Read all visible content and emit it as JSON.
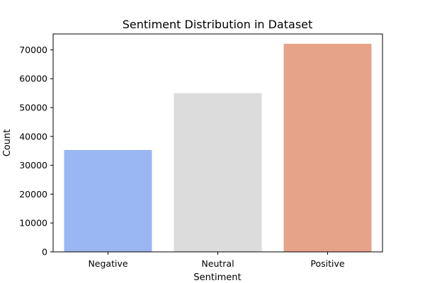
{
  "chart_data": {
    "type": "bar",
    "title": "Sentiment Distribution in Dataset",
    "xlabel": "Sentiment",
    "ylabel": "Count",
    "categories": [
      "Negative",
      "Neutral",
      "Positive"
    ],
    "values": [
      35300,
      55000,
      72100
    ],
    "colors": [
      "#9bb7f3",
      "#dcdcdc",
      "#e6a38a"
    ],
    "ylim": [
      0,
      75500
    ],
    "yticks": [
      0,
      10000,
      20000,
      30000,
      40000,
      50000,
      60000,
      70000
    ],
    "grid": false,
    "legend": "none"
  }
}
